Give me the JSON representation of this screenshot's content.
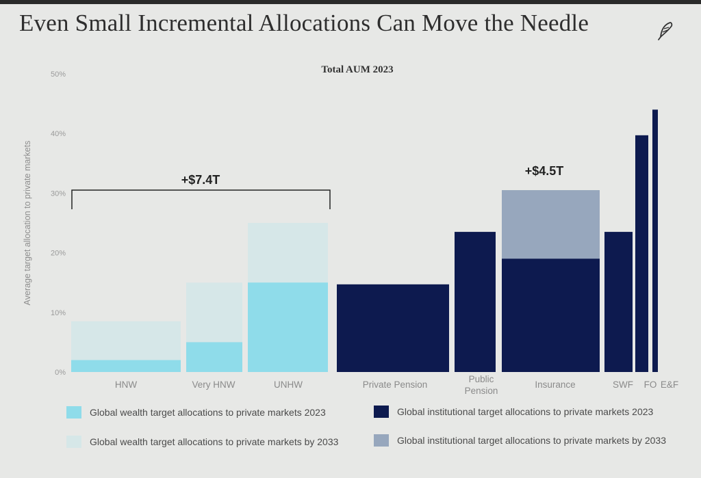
{
  "slide": {
    "title": "Even Small Incremental Allocations Can Move the Needle",
    "logo_icon": "quill-pen-icon"
  },
  "chart_data": {
    "type": "bar",
    "title": "Total AUM 2023",
    "ylabel": "Average target allocation to private markets",
    "ylim": [
      0,
      50
    ],
    "yticks": [
      "0%",
      "10%",
      "20%",
      "30%",
      "40%",
      "50%"
    ],
    "grid": false,
    "categories": [
      "HNW",
      "Very HNW",
      "UNHW",
      "Private Pension",
      "Public\nPension",
      "Insurance",
      "SWF",
      "FO",
      "E&F"
    ],
    "category_group": [
      "wealth",
      "wealth",
      "wealth",
      "institutional",
      "institutional",
      "institutional",
      "institutional",
      "institutional",
      "institutional"
    ],
    "series": [
      {
        "name": "Global wealth target allocations to private markets 2023",
        "values": [
          2,
          5,
          15,
          null,
          null,
          null,
          null,
          null,
          null
        ]
      },
      {
        "name": "Global wealth target allocations to private markets by 2033",
        "values": [
          8.5,
          15,
          25,
          null,
          null,
          null,
          null,
          null,
          null
        ]
      },
      {
        "name": "Global institutional target allocations to private markets 2023",
        "values": [
          null,
          null,
          null,
          14.7,
          23.5,
          19,
          23.5,
          39.7,
          44
        ]
      },
      {
        "name": "Global institutional target allocations to private markets by 2033",
        "values": [
          null,
          null,
          null,
          null,
          null,
          30.5,
          null,
          null,
          null
        ]
      }
    ],
    "annotations": [
      {
        "text": "+$7.4T",
        "spans": [
          "HNW",
          "UNHW"
        ],
        "bracket_at": 30.5
      },
      {
        "text": "+$4.5T",
        "spans": [
          "Insurance"
        ]
      }
    ],
    "legend": "bottom",
    "colors": {
      "wealth_2023": "#8fdcea",
      "wealth_2033": "#d6e7e8",
      "inst_2023": "#0d1a4f",
      "inst_2033": "#97a7bd"
    }
  }
}
